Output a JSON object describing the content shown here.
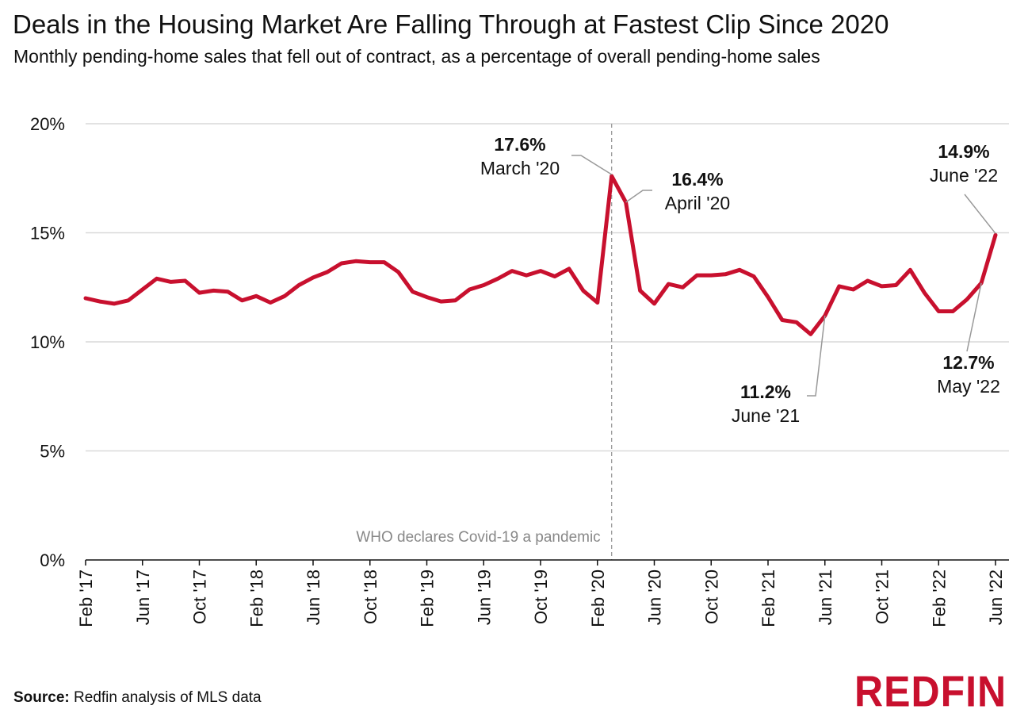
{
  "title": "Deals in the Housing Market Are Falling Through at Fastest Clip Since 2020",
  "subtitle": "Monthly pending-home sales that fell out of contract, as a percentage of overall pending-home sales",
  "source_label": "Source:",
  "source_text": "Redfin analysis of MLS data",
  "logo_text": "REDFIN",
  "colors": {
    "line": "#c8102e",
    "grid": "#d9d9d9",
    "event_line": "#999999",
    "event_text": "#888888",
    "leader": "#999999"
  },
  "chart_data": {
    "type": "line",
    "title": "Deals in the Housing Market Are Falling Through at Fastest Clip Since 2020",
    "xlabel": "",
    "ylabel": "",
    "ylim": [
      0,
      20
    ],
    "grid": true,
    "yticks": [
      0,
      5,
      10,
      15,
      20
    ],
    "ytick_labels": [
      "0%",
      "5%",
      "10%",
      "15%",
      "20%"
    ],
    "x_start": "Feb '17",
    "x_end": "Jun '22",
    "xtick_labels": [
      "Feb '17",
      "Jun '17",
      "Oct '17",
      "Feb '18",
      "Jun '18",
      "Oct '18",
      "Feb '19",
      "Jun '19",
      "Oct '19",
      "Feb '20",
      "Jun '20",
      "Oct '20",
      "Feb '21",
      "Jun '21",
      "Oct '21",
      "Feb '22",
      "Jun '22"
    ],
    "series": [
      {
        "values": [
          12.0,
          11.85,
          11.75,
          11.9,
          12.4,
          12.9,
          12.75,
          12.8,
          12.25,
          12.35,
          12.3,
          11.9,
          12.1,
          11.8,
          12.1,
          12.6,
          12.95,
          13.2,
          13.6,
          13.7,
          13.65,
          13.65,
          13.2,
          12.3,
          12.05,
          11.85,
          11.9,
          12.4,
          12.6,
          12.9,
          13.25,
          13.05,
          13.25,
          13.0,
          13.35,
          12.35,
          11.8,
          17.6,
          16.4,
          12.35,
          11.75,
          12.65,
          12.5,
          13.05,
          13.05,
          13.1,
          13.3,
          13.0,
          12.05,
          11.0,
          10.9,
          10.35,
          11.2,
          12.55,
          12.4,
          12.8,
          12.55,
          12.6,
          13.3,
          12.25,
          11.4,
          11.4,
          11.95,
          12.7,
          14.9
        ]
      }
    ],
    "annotations": [
      {
        "value_label": "17.6%",
        "date_label": "March '20"
      },
      {
        "value_label": "16.4%",
        "date_label": "April '20"
      },
      {
        "value_label": "11.2%",
        "date_label": "June '21"
      },
      {
        "value_label": "14.9%",
        "date_label": "June '22"
      },
      {
        "value_label": "12.7%",
        "date_label": "May '22"
      }
    ],
    "event": {
      "label": "WHO declares Covid-19 a pandemic",
      "date": "March '20"
    }
  }
}
